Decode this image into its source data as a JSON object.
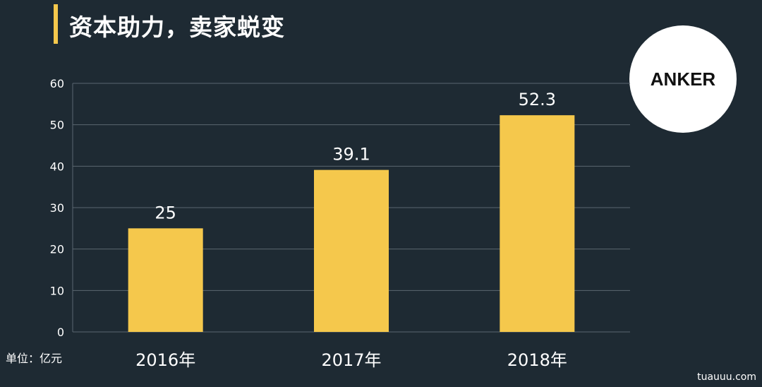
{
  "title": "资本助力，卖家蜕变",
  "logo_text": "ANKER",
  "unit_label": "单位：亿元",
  "footer_mark": "tuauuu.com",
  "colors": {
    "background": "#1e2a33",
    "bar": "#f5c84c",
    "accent": "#f5c84c",
    "grid": "#5b6770",
    "text": "#ffffff"
  },
  "chart_data": {
    "type": "bar",
    "categories": [
      "2016年",
      "2017年",
      "2018年"
    ],
    "values": [
      25,
      39.1,
      52.3
    ],
    "data_labels": [
      "25",
      "39.1",
      "52.3"
    ],
    "ylim": [
      0,
      60
    ],
    "yticks": [
      0,
      10,
      20,
      30,
      40,
      50,
      60
    ],
    "grid": true,
    "title": "",
    "xlabel": "",
    "ylabel": ""
  }
}
